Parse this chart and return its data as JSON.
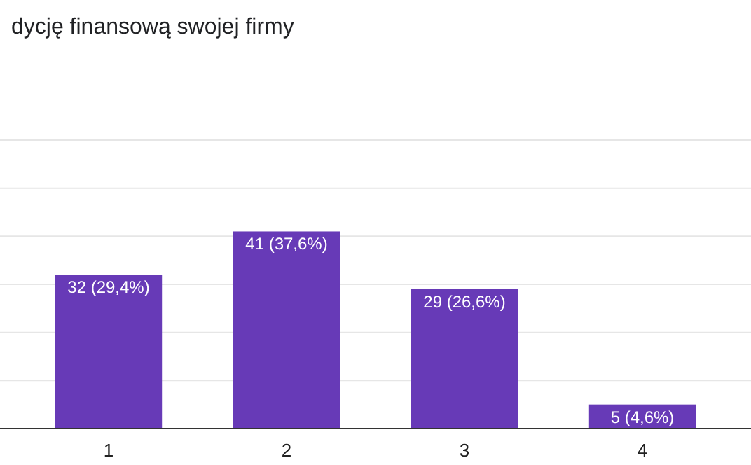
{
  "chart_data": {
    "type": "bar",
    "title": "dycję finansową swojej firmy",
    "categories": [
      "1",
      "2",
      "3",
      "4"
    ],
    "values": [
      32,
      41,
      29,
      5
    ],
    "color": "#673ab7",
    "value_labels": [
      "32 (29,4%)",
      "41 (37,6%)",
      "29 (26,6%)",
      "5 (4,6%)"
    ],
    "ylim": [
      0,
      60
    ],
    "yticks": [
      {
        "value": 0,
        "label": null
      },
      {
        "value": 10,
        "label": null
      },
      {
        "value": 20,
        "label": null
      },
      {
        "value": 30,
        "label": null
      },
      {
        "value": 40,
        "label": null
      },
      {
        "value": 50,
        "label": null
      },
      {
        "value": 60,
        "label": null
      }
    ],
    "grid": "y",
    "tick_labels": "x"
  }
}
